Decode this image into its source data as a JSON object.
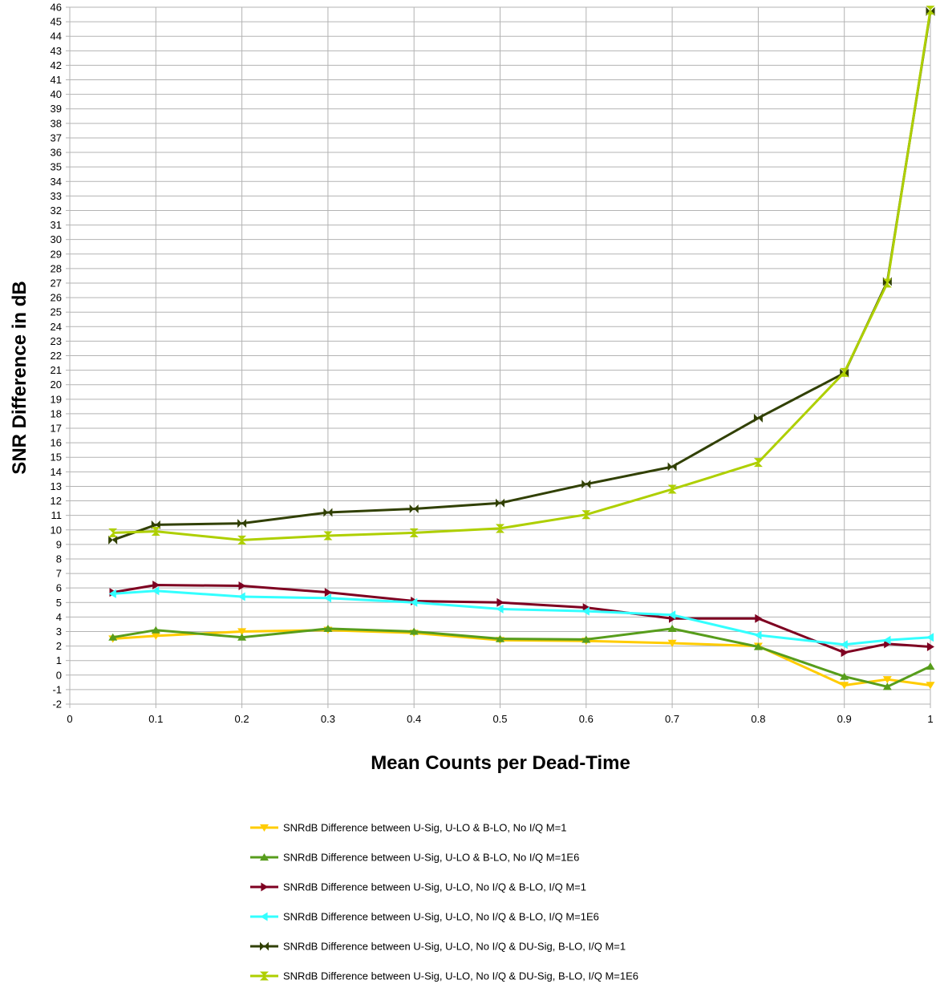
{
  "chart_data": {
    "type": "line",
    "title": "",
    "xlabel": "Mean Counts per Dead-Time",
    "ylabel": "SNR Difference in dB",
    "xlim": [
      0,
      1
    ],
    "ylim": [
      -2,
      46
    ],
    "x_ticks": [
      0,
      0.1,
      0.2,
      0.3,
      0.4,
      0.5,
      0.6,
      0.7,
      0.8,
      0.9,
      1
    ],
    "x_tick_labels": [
      "0",
      "0.1",
      "0.2",
      "0.3",
      "0.4",
      "0.5",
      "0.6",
      "0.7",
      "0.8",
      "0.9",
      "1"
    ],
    "y_tick_step": 1,
    "grid": true,
    "legend_position": "bottom",
    "x": [
      0.05,
      0.1,
      0.2,
      0.3,
      0.4,
      0.5,
      0.6,
      0.7,
      0.8,
      0.9,
      0.95,
      1
    ],
    "series": [
      {
        "name": "SNRdB Difference between U-Sig, U-LO & B-LO, No I/Q M=1",
        "color": "#ffcc00",
        "marker": "triangle-down",
        "values": [
          2.5,
          2.7,
          3.0,
          3.1,
          2.9,
          2.4,
          2.35,
          2.2,
          2.0,
          -0.7,
          -0.3,
          -0.7
        ]
      },
      {
        "name": "SNRdB Difference between U-Sig, U-LO & B-LO, No I/Q M=1E6",
        "color": "#579d1c",
        "marker": "triangle-up",
        "values": [
          2.6,
          3.1,
          2.6,
          3.2,
          3.0,
          2.5,
          2.45,
          3.2,
          1.95,
          -0.1,
          -0.8,
          0.6
        ]
      },
      {
        "name": "SNRdB Difference between U-Sig, U-LO, No I/Q & B-LO, I/Q M=1",
        "color": "#7e0021",
        "marker": "triangle-right",
        "values": [
          5.7,
          6.2,
          6.15,
          5.7,
          5.1,
          5.0,
          4.65,
          3.9,
          3.9,
          1.55,
          2.15,
          1.95
        ]
      },
      {
        "name": "SNRdB Difference between U-Sig, U-LO, No I/Q & B-LO, I/Q M=1E6",
        "color": "#33ffff",
        "marker": "triangle-left",
        "values": [
          5.6,
          5.8,
          5.4,
          5.3,
          5.0,
          4.55,
          4.4,
          4.15,
          2.75,
          2.1,
          2.4,
          2.6
        ]
      },
      {
        "name": "SNRdB Difference between U-Sig, U-LO, No I/Q & DU-Sig, B-LO, I/Q M=1",
        "color": "#314004",
        "marker": "bowtie",
        "values": [
          9.3,
          10.35,
          10.45,
          11.2,
          11.45,
          11.85,
          13.15,
          14.35,
          17.7,
          20.8,
          27.1,
          45.7
        ]
      },
      {
        "name": "SNRdB Difference between U-Sig, U-LO, No I/Q & DU-Sig, B-LO, I/Q M=1E6",
        "color": "#aecf00",
        "marker": "hourglass",
        "values": [
          9.8,
          9.9,
          9.3,
          9.6,
          9.8,
          10.1,
          11.05,
          12.8,
          14.65,
          20.85,
          27.0,
          45.8
        ]
      }
    ]
  }
}
